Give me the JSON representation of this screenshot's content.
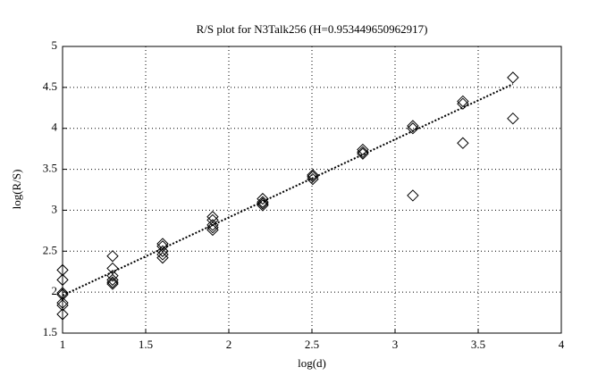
{
  "chart_data": {
    "type": "scatter",
    "title": "R/S plot for N3Talk256 (H=0.953449650962917)",
    "xlabel": "log(d)",
    "ylabel": "log(R/S)",
    "xlim": [
      1,
      4
    ],
    "ylim": [
      1.5,
      5
    ],
    "xticks": [
      1,
      1.5,
      2,
      2.5,
      3,
      3.5,
      4
    ],
    "yticks": [
      1.5,
      2,
      2.5,
      3,
      3.5,
      4,
      4.5,
      5
    ],
    "grid": true,
    "marker": "diamond",
    "series": [
      {
        "color": "#000000",
        "x": [
          1,
          1,
          1,
          1,
          1,
          1,
          1,
          1.301,
          1.301,
          1.301,
          1.301,
          1.301,
          1.301,
          1.602,
          1.602,
          1.602,
          1.602,
          1.602,
          1.903,
          1.903,
          1.903,
          1.903,
          1.903,
          2.204,
          2.204,
          2.204,
          2.204,
          2.505,
          2.505,
          2.505,
          2.806,
          2.806,
          2.806,
          3.107,
          3.107,
          3.107,
          3.408,
          3.408,
          3.408,
          3.709,
          3.709
        ],
        "values": [
          2.27,
          2.15,
          1.99,
          1.97,
          1.87,
          1.84,
          1.73,
          2.44,
          2.29,
          2.2,
          2.15,
          2.12,
          2.1,
          2.59,
          2.56,
          2.5,
          2.46,
          2.42,
          2.92,
          2.88,
          2.82,
          2.79,
          2.76,
          3.14,
          3.1,
          3.08,
          3.06,
          3.43,
          3.41,
          3.38,
          3.74,
          3.71,
          3.69,
          4.03,
          4.0,
          3.18,
          4.33,
          4.3,
          3.82,
          4.62,
          4.12
        ]
      }
    ],
    "fit": {
      "color": "#000000",
      "x": [
        1,
        3.709
      ],
      "values": [
        1.96,
        4.54
      ]
    }
  }
}
